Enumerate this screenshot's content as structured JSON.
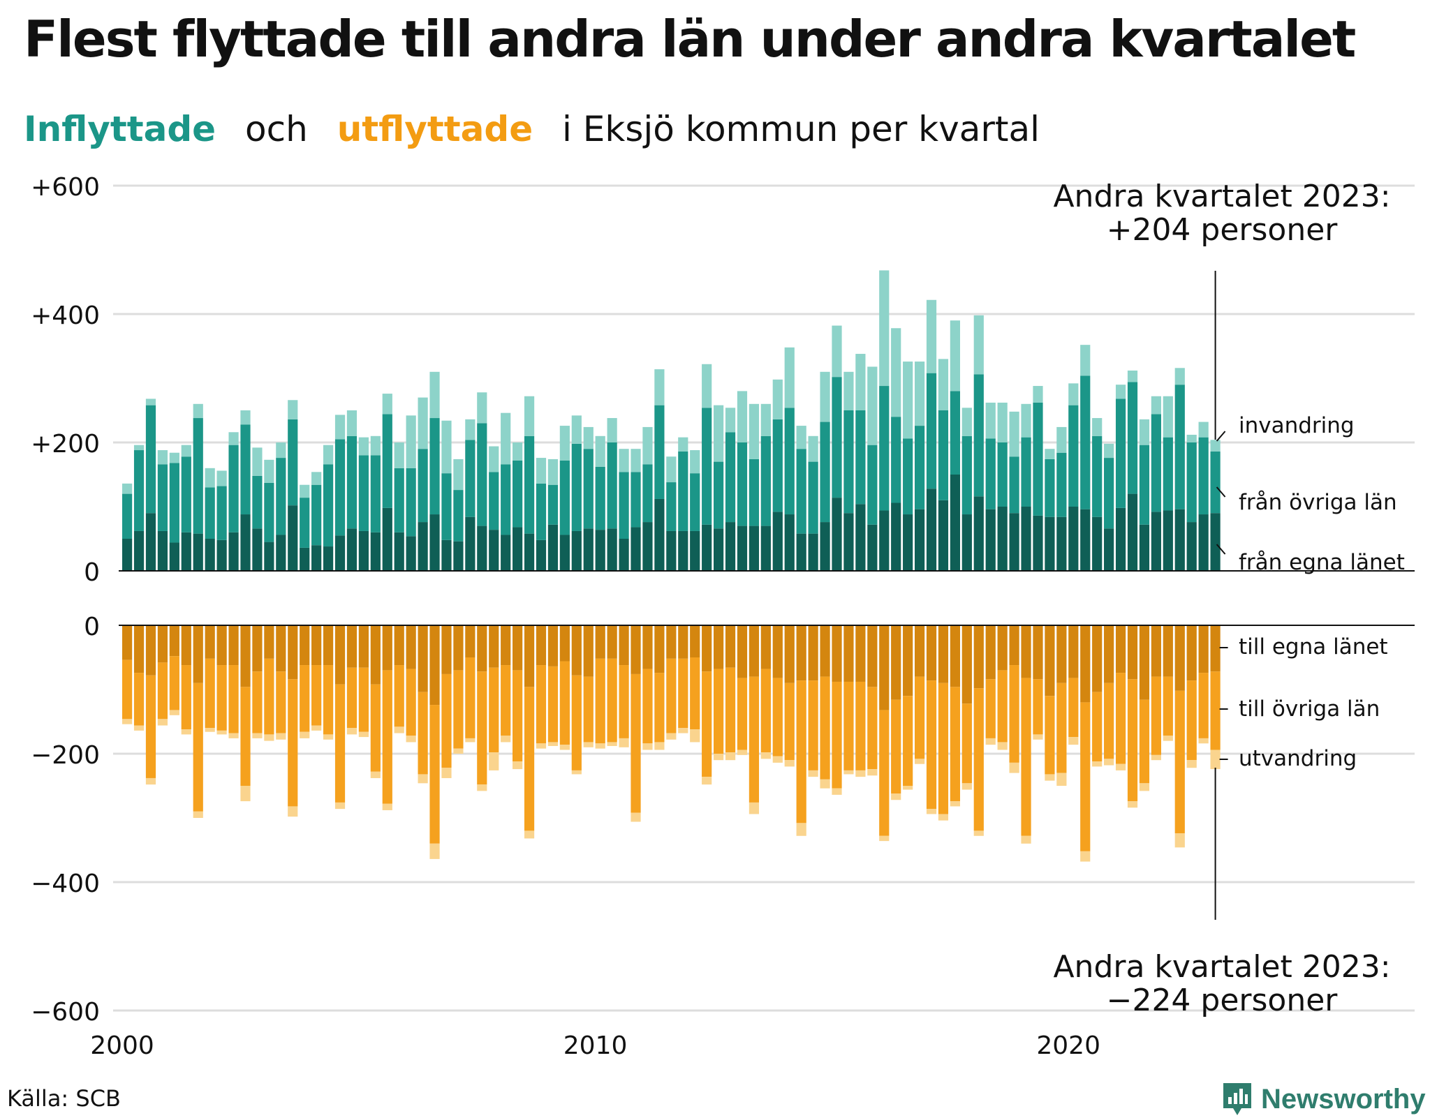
{
  "title": "Flest flyttade till andra län under andra kvartalet",
  "subtitle": {
    "in_word": "Inflyttade",
    "and_word": "och",
    "out_word": "utflyttade",
    "rest": "i Eksjö kommun per kvartal"
  },
  "source": "Källa: SCB",
  "brand": "Newsworthy",
  "colors": {
    "in_own": "#0f5f56",
    "in_other": "#1b9688",
    "in_immigration": "#8dd3c9",
    "out_own": "#d4860f",
    "out_other": "#f5a11e",
    "out_emigration": "#fad48e",
    "grid": "#dddddd"
  },
  "annotations": {
    "top_line1": "Andra kvartalet 2023:",
    "top_line2": "+204 personer",
    "bottom_line1": "Andra kvartalet 2023:",
    "bottom_line2": "−224 personer"
  },
  "chart_data": {
    "type": "bar",
    "stacked": true,
    "x_ticks": [
      "2000",
      "2010",
      "2020"
    ],
    "y_ticks_top": [
      "+600",
      "+400",
      "+200",
      "0"
    ],
    "y_ticks_bottom": [
      "0",
      "−200",
      "−400",
      "−600"
    ],
    "ylim_top": [
      0,
      600
    ],
    "ylim_bottom": [
      -600,
      0
    ],
    "x_start": "2000 Q1",
    "x_end": "2023 Q2",
    "series_labels_in": [
      "invandring",
      "från övriga län",
      "från egna länet"
    ],
    "series_labels_out": [
      "till egna länet",
      "till övriga län",
      "utvandring"
    ],
    "in_own": [
      50,
      62,
      90,
      62,
      44,
      60,
      58,
      50,
      48,
      60,
      88,
      66,
      45,
      56,
      102,
      36,
      40,
      38,
      55,
      66,
      62,
      60,
      98,
      60,
      54,
      76,
      88,
      48,
      46,
      84,
      70,
      64,
      56,
      68,
      58,
      48,
      72,
      56,
      62,
      66,
      64,
      66,
      50,
      68,
      76,
      112,
      62,
      62,
      62,
      72,
      66,
      76,
      70,
      70,
      70,
      92,
      88,
      58,
      58,
      76,
      114,
      90,
      104,
      72,
      94,
      106,
      88,
      96,
      128,
      110,
      150,
      88,
      116,
      96,
      100,
      90,
      100,
      86,
      84,
      84,
      100,
      96,
      84,
      66,
      98,
      120,
      72,
      92,
      94,
      96,
      76,
      88,
      90
    ],
    "in_other": [
      70,
      126,
      168,
      104,
      124,
      118,
      180,
      80,
      84,
      136,
      140,
      82,
      92,
      120,
      134,
      78,
      94,
      128,
      150,
      144,
      118,
      120,
      146,
      100,
      106,
      114,
      150,
      104,
      80,
      120,
      160,
      90,
      110,
      104,
      152,
      88,
      62,
      116,
      136,
      124,
      98,
      134,
      104,
      86,
      90,
      146,
      76,
      124,
      90,
      182,
      104,
      140,
      130,
      104,
      140,
      144,
      166,
      132,
      112,
      156,
      188,
      160,
      146,
      124,
      194,
      134,
      118,
      130,
      180,
      140,
      130,
      122,
      190,
      110,
      100,
      88,
      108,
      176,
      90,
      100,
      158,
      208,
      126,
      110,
      170,
      174,
      124,
      152,
      114,
      194,
      124,
      120,
      96
    ],
    "in_immigration": [
      16,
      8,
      10,
      22,
      16,
      18,
      22,
      30,
      24,
      20,
      22,
      44,
      36,
      24,
      30,
      20,
      20,
      30,
      38,
      40,
      28,
      30,
      32,
      40,
      82,
      80,
      72,
      82,
      48,
      32,
      48,
      40,
      80,
      28,
      62,
      40,
      40,
      54,
      44,
      34,
      48,
      38,
      36,
      36,
      58,
      56,
      40,
      22,
      36,
      68,
      88,
      38,
      80,
      86,
      50,
      62,
      94,
      36,
      40,
      78,
      80,
      60,
      88,
      122,
      180,
      138,
      120,
      100,
      114,
      80,
      110,
      44,
      92,
      56,
      62,
      70,
      52,
      26,
      16,
      40,
      34,
      48,
      28,
      22,
      22,
      18,
      40,
      28,
      64,
      26,
      12,
      24,
      18
    ],
    "out_own": [
      -54,
      -74,
      -78,
      -58,
      -48,
      -62,
      -90,
      -52,
      -62,
      -62,
      -96,
      -72,
      -52,
      -72,
      -84,
      -62,
      -62,
      -62,
      -92,
      -66,
      -66,
      -92,
      -70,
      -62,
      -68,
      -104,
      -124,
      -76,
      -70,
      -50,
      -72,
      -66,
      -62,
      -70,
      -96,
      -62,
      -64,
      -56,
      -78,
      -80,
      -52,
      -52,
      -62,
      -76,
      -68,
      -74,
      -52,
      -52,
      -50,
      -72,
      -68,
      -66,
      -82,
      -80,
      -68,
      -82,
      -90,
      -86,
      -86,
      -80,
      -88,
      -88,
      -88,
      -96,
      -132,
      -116,
      -110,
      -80,
      -86,
      -90,
      -96,
      -122,
      -98,
      -84,
      -70,
      -62,
      -82,
      -84,
      -110,
      -90,
      -82,
      -120,
      -104,
      -90,
      -74,
      -84,
      -116,
      -80,
      -80,
      -102,
      -86,
      -74,
      -72
    ],
    "out_other": [
      -92,
      -82,
      -160,
      -88,
      -84,
      -100,
      -200,
      -108,
      -102,
      -106,
      -154,
      -96,
      -118,
      -96,
      -198,
      -104,
      -94,
      -108,
      -184,
      -94,
      -100,
      -136,
      -208,
      -96,
      -104,
      -128,
      -216,
      -146,
      -122,
      -126,
      -176,
      -132,
      -110,
      -142,
      -224,
      -122,
      -118,
      -130,
      -148,
      -102,
      -132,
      -130,
      -114,
      -216,
      -116,
      -108,
      -116,
      -108,
      -112,
      -164,
      -132,
      -132,
      -112,
      -196,
      -130,
      -122,
      -120,
      -222,
      -140,
      -160,
      -166,
      -138,
      -138,
      -128,
      -196,
      -146,
      -140,
      -128,
      -200,
      -204,
      -178,
      -124,
      -222,
      -92,
      -112,
      -152,
      -246,
      -86,
      -122,
      -140,
      -92,
      -232,
      -108,
      -118,
      -142,
      -190,
      -130,
      -122,
      -92,
      -222,
      -124,
      -102,
      -122
    ],
    "out_emigration": [
      -8,
      -8,
      -10,
      -10,
      -8,
      -8,
      -10,
      -6,
      -6,
      -8,
      -24,
      -8,
      -10,
      -10,
      -16,
      -10,
      -8,
      -8,
      -10,
      -10,
      -8,
      -10,
      -10,
      -10,
      -10,
      -14,
      -24,
      -16,
      -8,
      -6,
      -10,
      -28,
      -10,
      -12,
      -12,
      -8,
      -6,
      -8,
      -6,
      -8,
      -8,
      -6,
      -14,
      -14,
      -10,
      -12,
      -10,
      -8,
      -20,
      -12,
      -10,
      -12,
      -8,
      -18,
      -10,
      -10,
      -10,
      -20,
      -10,
      -14,
      -10,
      -6,
      -10,
      -10,
      -8,
      -10,
      -6,
      -8,
      -8,
      -10,
      -8,
      -10,
      -8,
      -10,
      -12,
      -16,
      -12,
      -8,
      -10,
      -20,
      -12,
      -16,
      -8,
      -10,
      -10,
      -10,
      -12,
      -8,
      -8,
      -22,
      -12,
      -8,
      -30
    ]
  }
}
